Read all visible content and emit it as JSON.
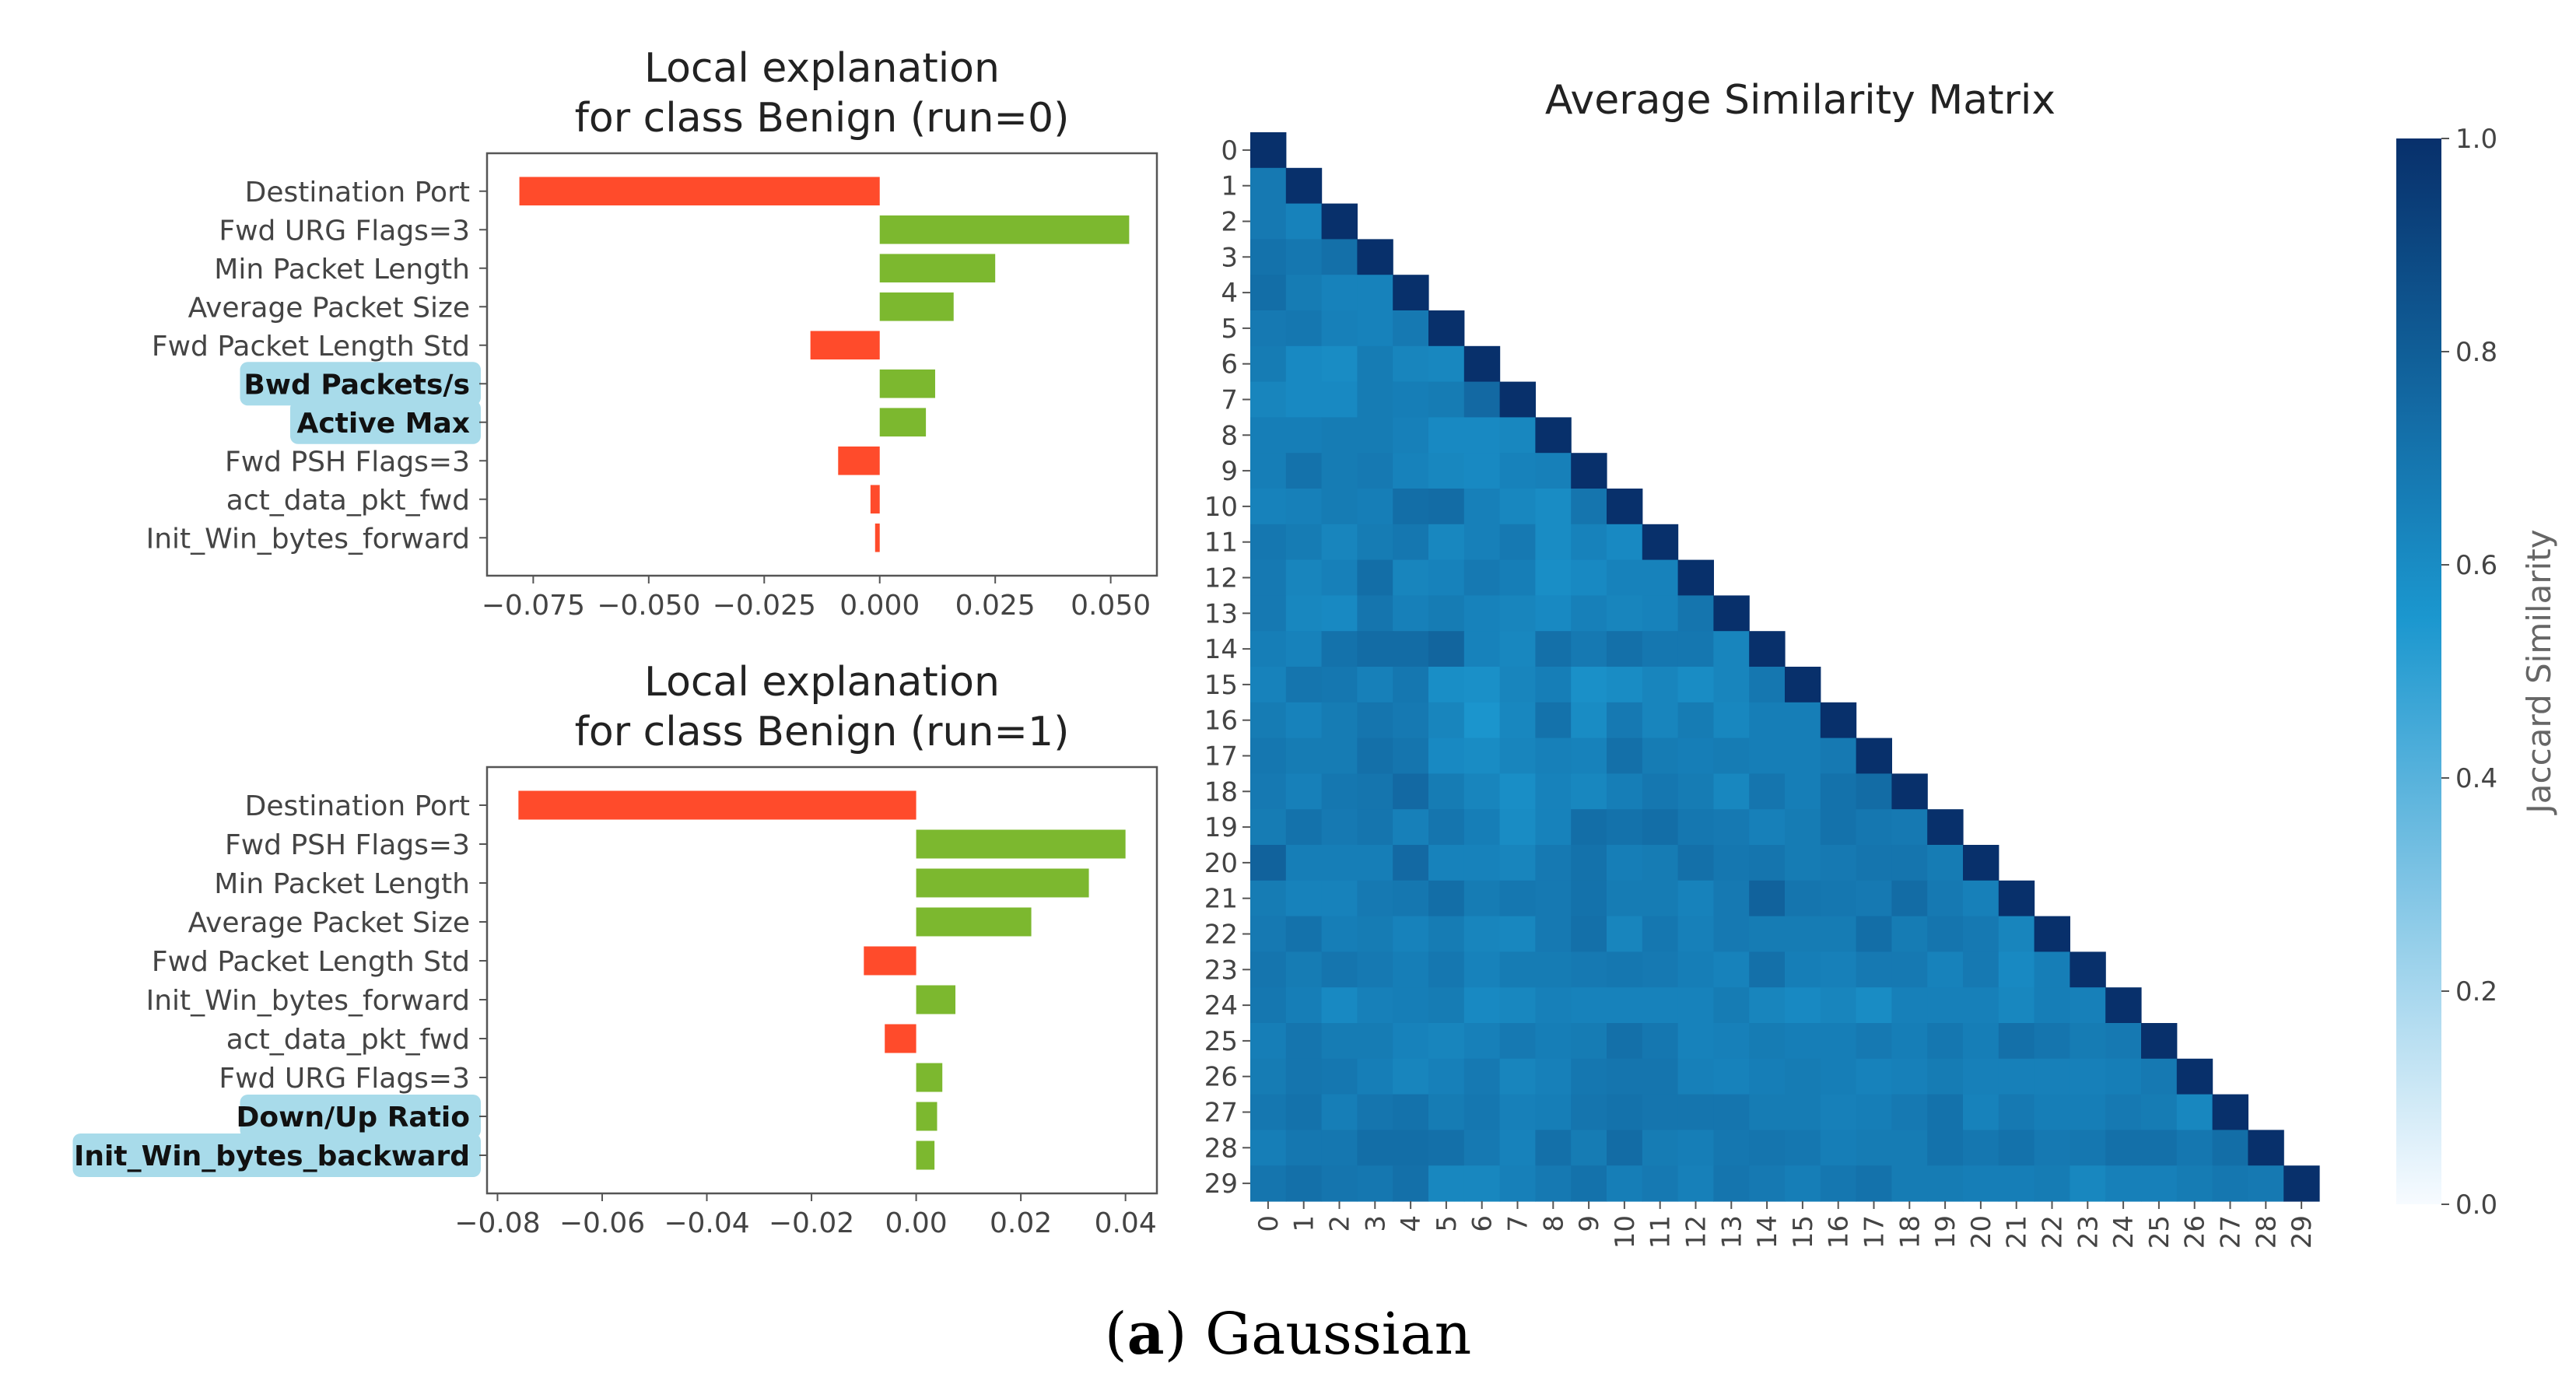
{
  "colors": {
    "negative": "#ff4b2b",
    "positive": "#7cb82f",
    "highlight": "#a8dbea",
    "text": "#444444",
    "title": "#222222",
    "cmap_low": "#f7fbff",
    "cmap_mid": "#1b97cf",
    "cmap_high": "#08306b"
  },
  "chart_data": [
    {
      "type": "bar",
      "orientation": "horizontal",
      "title": [
        "Local explanation",
        "for class Benign (run=0)"
      ],
      "categories": [
        "Destination Port",
        "Fwd URG Flags=3",
        "Min Packet Length",
        "Average Packet Size",
        "Fwd Packet Length Std",
        "Bwd Packets/s",
        "Active Max",
        "Fwd PSH Flags=3",
        "act_data_pkt_fwd",
        "Init_Win_bytes_forward"
      ],
      "values": [
        -0.078,
        0.054,
        0.025,
        0.016,
        -0.015,
        0.012,
        0.01,
        -0.009,
        -0.002,
        -0.001
      ],
      "highlighted": [
        false,
        false,
        false,
        false,
        false,
        true,
        true,
        false,
        false,
        false
      ],
      "xlim": [
        -0.085,
        0.06
      ],
      "xticks": [
        -0.075,
        -0.05,
        -0.025,
        0.0,
        0.025,
        0.05
      ],
      "xtick_labels": [
        "−0.075",
        "−0.050",
        "−0.025",
        "0.000",
        "0.025",
        "0.050"
      ]
    },
    {
      "type": "bar",
      "orientation": "horizontal",
      "title": [
        "Local explanation",
        "for class Benign (run=1)"
      ],
      "categories": [
        "Destination Port",
        "Fwd PSH Flags=3",
        "Min Packet Length",
        "Average Packet Size",
        "Fwd Packet Length Std",
        "Init_Win_bytes_forward",
        "act_data_pkt_fwd",
        "Fwd URG Flags=3",
        "Down/Up Ratio",
        "Init_Win_bytes_backward"
      ],
      "values": [
        -0.076,
        0.04,
        0.033,
        0.022,
        -0.01,
        0.0075,
        -0.006,
        0.005,
        0.004,
        0.0035
      ],
      "highlighted": [
        false,
        false,
        false,
        false,
        false,
        false,
        false,
        false,
        true,
        true
      ],
      "xlim": [
        -0.082,
        0.046
      ],
      "xticks": [
        -0.08,
        -0.06,
        -0.04,
        -0.02,
        0.0,
        0.02,
        0.04
      ],
      "xtick_labels": [
        "−0.08",
        "−0.06",
        "−0.04",
        "−0.02",
        "0.00",
        "0.02",
        "0.04"
      ]
    },
    {
      "type": "heatmap",
      "title": "Average Similarity Matrix",
      "n": 30,
      "row_labels": [
        "0",
        "1",
        "2",
        "3",
        "4",
        "5",
        "6",
        "7",
        "8",
        "9",
        "10",
        "11",
        "12",
        "13",
        "14",
        "15",
        "16",
        "17",
        "18",
        "19",
        "20",
        "21",
        "22",
        "23",
        "24",
        "25",
        "26",
        "27",
        "28",
        "29"
      ],
      "col_labels": [
        "0",
        "1",
        "2",
        "3",
        "4",
        "5",
        "6",
        "7",
        "8",
        "9",
        "10",
        "11",
        "12",
        "13",
        "14",
        "15",
        "16",
        "17",
        "18",
        "19",
        "20",
        "21",
        "22",
        "23",
        "24",
        "25",
        "26",
        "27",
        "28",
        "29"
      ],
      "mask": "upper triangle (above diagonal) empty",
      "diagonal_value": 1.0,
      "values": [
        [
          1.0
        ],
        [
          0.68,
          1.0
        ],
        [
          0.68,
          0.64,
          1.0
        ],
        [
          0.71,
          0.69,
          0.72,
          1.0
        ],
        [
          0.73,
          0.67,
          0.64,
          0.64,
          1.0
        ],
        [
          0.68,
          0.69,
          0.65,
          0.64,
          0.68,
          1.0
        ],
        [
          0.67,
          0.61,
          0.6,
          0.67,
          0.63,
          0.62,
          1.0
        ],
        [
          0.63,
          0.61,
          0.61,
          0.67,
          0.66,
          0.67,
          0.75,
          1.0
        ],
        [
          0.66,
          0.66,
          0.67,
          0.67,
          0.65,
          0.61,
          0.61,
          0.62,
          1.0
        ],
        [
          0.66,
          0.71,
          0.67,
          0.68,
          0.64,
          0.62,
          0.61,
          0.64,
          0.65,
          1.0
        ],
        [
          0.64,
          0.65,
          0.67,
          0.66,
          0.73,
          0.74,
          0.65,
          0.62,
          0.6,
          0.7,
          1.0
        ],
        [
          0.69,
          0.67,
          0.63,
          0.67,
          0.69,
          0.62,
          0.65,
          0.68,
          0.6,
          0.64,
          0.61,
          1.0
        ],
        [
          0.68,
          0.63,
          0.65,
          0.73,
          0.63,
          0.64,
          0.68,
          0.66,
          0.59,
          0.61,
          0.64,
          0.64,
          1.0
        ],
        [
          0.68,
          0.62,
          0.61,
          0.7,
          0.65,
          0.67,
          0.64,
          0.63,
          0.61,
          0.65,
          0.63,
          0.64,
          0.7,
          1.0
        ],
        [
          0.66,
          0.64,
          0.71,
          0.74,
          0.74,
          0.77,
          0.64,
          0.62,
          0.72,
          0.68,
          0.72,
          0.69,
          0.69,
          0.63,
          1.0
        ],
        [
          0.64,
          0.7,
          0.69,
          0.65,
          0.69,
          0.59,
          0.58,
          0.63,
          0.66,
          0.58,
          0.6,
          0.63,
          0.6,
          0.63,
          0.69,
          1.0
        ],
        [
          0.67,
          0.64,
          0.67,
          0.7,
          0.68,
          0.63,
          0.56,
          0.62,
          0.71,
          0.6,
          0.68,
          0.63,
          0.67,
          0.62,
          0.66,
          0.66,
          1.0
        ],
        [
          0.69,
          0.67,
          0.67,
          0.72,
          0.7,
          0.61,
          0.6,
          0.63,
          0.65,
          0.64,
          0.72,
          0.67,
          0.66,
          0.67,
          0.66,
          0.66,
          0.68,
          1.0
        ],
        [
          0.68,
          0.65,
          0.69,
          0.7,
          0.75,
          0.67,
          0.63,
          0.59,
          0.64,
          0.62,
          0.66,
          0.69,
          0.67,
          0.62,
          0.7,
          0.66,
          0.71,
          0.74,
          1.0
        ],
        [
          0.67,
          0.71,
          0.68,
          0.7,
          0.65,
          0.7,
          0.66,
          0.6,
          0.64,
          0.73,
          0.71,
          0.73,
          0.69,
          0.68,
          0.65,
          0.67,
          0.71,
          0.69,
          0.68,
          1.0
        ],
        [
          0.78,
          0.66,
          0.66,
          0.66,
          0.75,
          0.64,
          0.64,
          0.63,
          0.68,
          0.71,
          0.66,
          0.67,
          0.72,
          0.69,
          0.7,
          0.67,
          0.68,
          0.7,
          0.7,
          0.67,
          1.0
        ],
        [
          0.67,
          0.64,
          0.64,
          0.68,
          0.69,
          0.73,
          0.67,
          0.69,
          0.68,
          0.71,
          0.67,
          0.67,
          0.64,
          0.68,
          0.78,
          0.7,
          0.69,
          0.68,
          0.74,
          0.68,
          0.65,
          1.0
        ],
        [
          0.68,
          0.71,
          0.66,
          0.67,
          0.64,
          0.67,
          0.63,
          0.62,
          0.68,
          0.72,
          0.63,
          0.69,
          0.65,
          0.68,
          0.67,
          0.67,
          0.67,
          0.73,
          0.67,
          0.7,
          0.68,
          0.63,
          1.0
        ],
        [
          0.7,
          0.67,
          0.7,
          0.68,
          0.66,
          0.69,
          0.64,
          0.67,
          0.67,
          0.68,
          0.69,
          0.68,
          0.66,
          0.64,
          0.72,
          0.66,
          0.65,
          0.68,
          0.68,
          0.64,
          0.68,
          0.61,
          0.66,
          1.0
        ],
        [
          0.69,
          0.66,
          0.61,
          0.65,
          0.66,
          0.67,
          0.61,
          0.62,
          0.65,
          0.64,
          0.64,
          0.64,
          0.64,
          0.67,
          0.63,
          0.61,
          0.63,
          0.6,
          0.65,
          0.65,
          0.65,
          0.62,
          0.66,
          0.65,
          1.0
        ],
        [
          0.66,
          0.7,
          0.67,
          0.67,
          0.64,
          0.63,
          0.65,
          0.68,
          0.66,
          0.67,
          0.72,
          0.69,
          0.64,
          0.65,
          0.67,
          0.66,
          0.66,
          0.68,
          0.66,
          0.69,
          0.66,
          0.72,
          0.7,
          0.67,
          0.68,
          1.0
        ],
        [
          0.67,
          0.7,
          0.69,
          0.66,
          0.63,
          0.65,
          0.68,
          0.63,
          0.65,
          0.69,
          0.7,
          0.7,
          0.65,
          0.64,
          0.66,
          0.67,
          0.66,
          0.64,
          0.65,
          0.67,
          0.65,
          0.65,
          0.65,
          0.65,
          0.66,
          0.68,
          1.0
        ],
        [
          0.69,
          0.71,
          0.66,
          0.7,
          0.71,
          0.67,
          0.69,
          0.65,
          0.66,
          0.7,
          0.71,
          0.7,
          0.7,
          0.7,
          0.67,
          0.67,
          0.65,
          0.66,
          0.68,
          0.71,
          0.64,
          0.68,
          0.66,
          0.66,
          0.68,
          0.67,
          0.62,
          1.0
        ],
        [
          0.66,
          0.69,
          0.69,
          0.73,
          0.73,
          0.72,
          0.68,
          0.64,
          0.72,
          0.67,
          0.74,
          0.67,
          0.66,
          0.69,
          0.7,
          0.69,
          0.66,
          0.67,
          0.67,
          0.71,
          0.69,
          0.71,
          0.68,
          0.69,
          0.72,
          0.72,
          0.69,
          0.73,
          1.0
        ],
        [
          0.7,
          0.72,
          0.7,
          0.69,
          0.72,
          0.62,
          0.62,
          0.65,
          0.68,
          0.71,
          0.66,
          0.68,
          0.65,
          0.7,
          0.68,
          0.66,
          0.69,
          0.71,
          0.67,
          0.67,
          0.66,
          0.66,
          0.67,
          0.62,
          0.65,
          0.65,
          0.67,
          0.69,
          0.68,
          1.0
        ]
      ],
      "vmin": 0.0,
      "vmax": 1.0,
      "colorbar_label": "Jaccard Similarity",
      "colorbar_ticks": [
        "0.0",
        "0.2",
        "0.4",
        "0.6",
        "0.8",
        "1.0"
      ]
    }
  ],
  "caption": {
    "label": "a",
    "text": "Gaussian"
  }
}
